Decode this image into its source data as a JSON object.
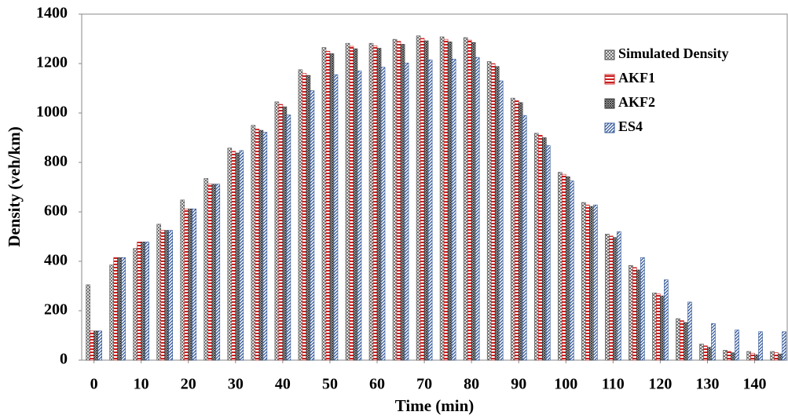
{
  "chart_data": {
    "type": "bar",
    "x_label": "Time (min)",
    "y_label": "Density (veh/km)",
    "x": [
      0,
      5,
      10,
      15,
      20,
      25,
      30,
      35,
      40,
      45,
      50,
      55,
      60,
      65,
      70,
      75,
      80,
      85,
      90,
      95,
      100,
      105,
      110,
      115,
      120,
      125,
      130,
      135,
      140,
      145
    ],
    "xlim": [
      -2.6,
      146.9
    ],
    "xticks": [
      0,
      10,
      20,
      30,
      40,
      50,
      60,
      70,
      80,
      90,
      100,
      110,
      120,
      130,
      140
    ],
    "ylim": [
      0,
      1400
    ],
    "yticks": [
      0,
      200,
      400,
      600,
      800,
      1000,
      1200,
      1400
    ],
    "grid": false,
    "legend": "upper right",
    "series": [
      {
        "name": "Simulated Density",
        "color": "#555555",
        "pattern": "crosshatch",
        "values": [
          305,
          385,
          452,
          550,
          648,
          735,
          858,
          950,
          1045,
          1175,
          1265,
          1282,
          1282,
          1298,
          1312,
          1308,
          1305,
          1208,
          1060,
          918,
          760,
          638,
          510,
          383,
          272,
          168,
          65,
          40,
          35,
          35
        ]
      },
      {
        "name": "AKF1",
        "color": "#cc1f1f",
        "pattern": "horizontal",
        "values": [
          118,
          415,
          478,
          525,
          612,
          712,
          845,
          935,
          1035,
          1160,
          1250,
          1270,
          1272,
          1290,
          1302,
          1298,
          1295,
          1200,
          1050,
          910,
          752,
          628,
          502,
          375,
          268,
          160,
          58,
          35,
          28,
          30
        ]
      },
      {
        "name": "AKF2",
        "color": "#333333",
        "pattern": "dense",
        "values": [
          118,
          415,
          478,
          525,
          612,
          712,
          838,
          930,
          1025,
          1152,
          1240,
          1260,
          1262,
          1278,
          1292,
          1288,
          1285,
          1188,
          1042,
          900,
          742,
          622,
          496,
          365,
          260,
          152,
          52,
          30,
          22,
          25
        ]
      },
      {
        "name": "ES4",
        "color": "#2f5597",
        "pattern": "diagonal",
        "values": [
          118,
          415,
          478,
          525,
          612,
          712,
          848,
          922,
          992,
          1090,
          1155,
          1170,
          1185,
          1202,
          1215,
          1218,
          1225,
          1130,
          990,
          868,
          725,
          628,
          520,
          415,
          325,
          235,
          148,
          122,
          115,
          115
        ]
      }
    ]
  }
}
